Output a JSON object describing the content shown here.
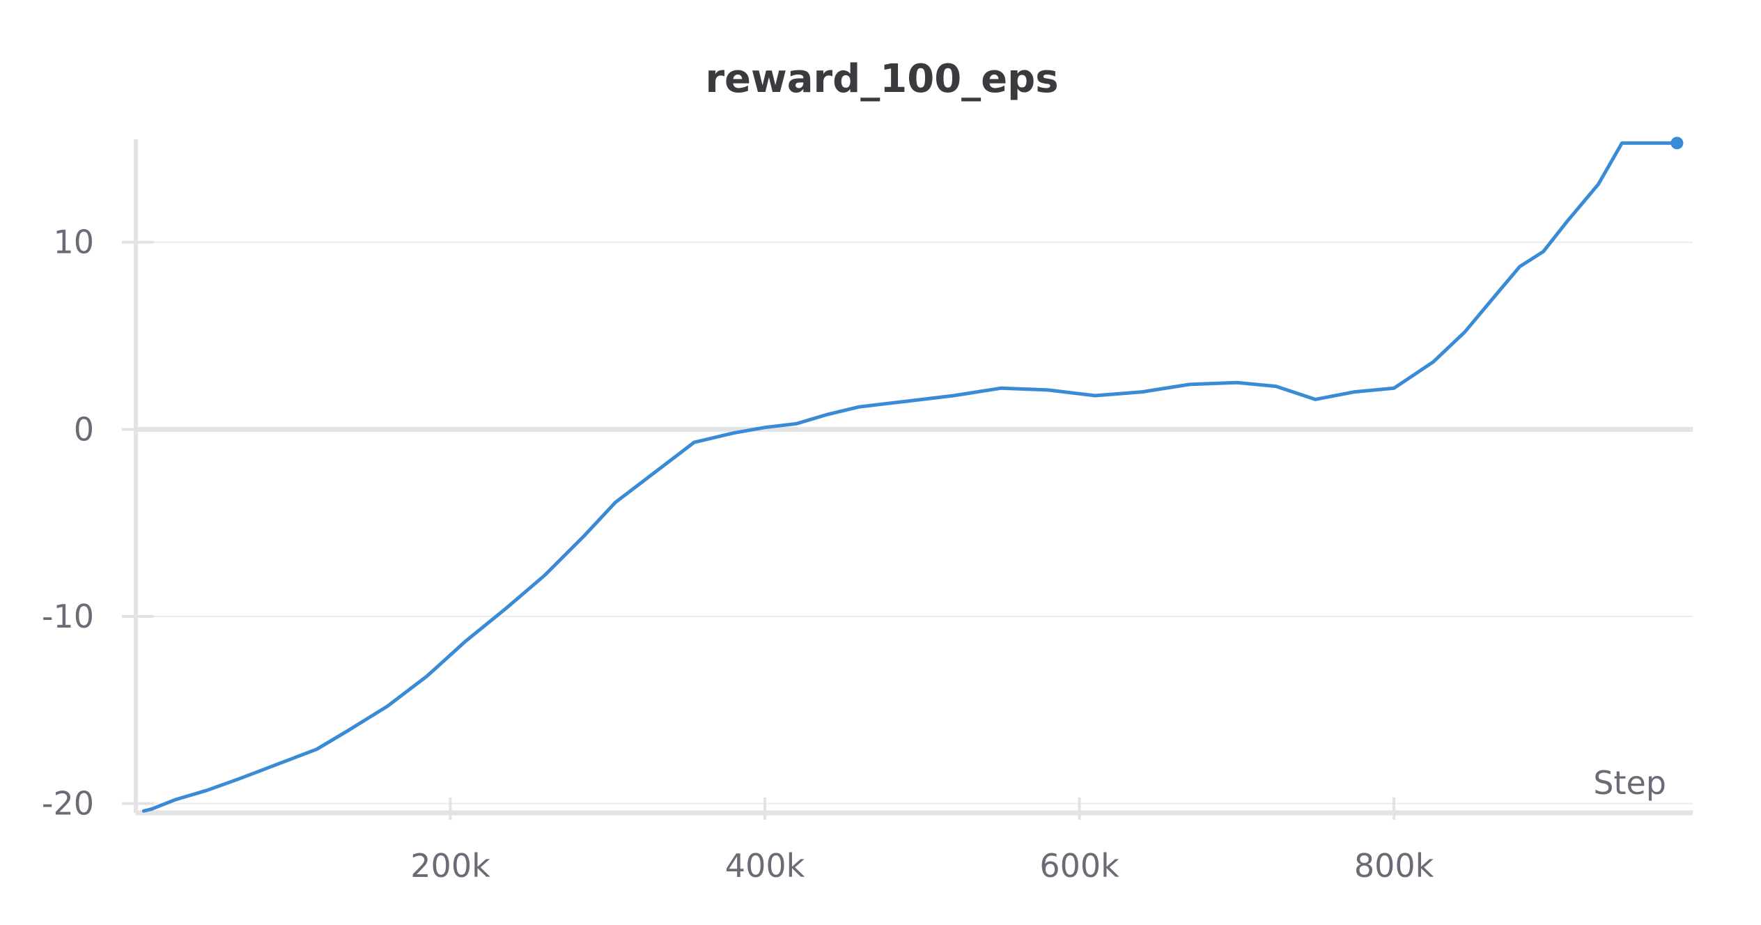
{
  "chart_data": {
    "type": "line",
    "title": "reward_100_eps",
    "xlabel": "Step",
    "ylabel": "",
    "xlim": [
      0,
      990000
    ],
    "ylim": [
      -20.5,
      15.5
    ],
    "x_ticks": [
      {
        "value": 200000,
        "label": "200k"
      },
      {
        "value": 400000,
        "label": "400k"
      },
      {
        "value": 600000,
        "label": "600k"
      },
      {
        "value": 800000,
        "label": "800k"
      }
    ],
    "y_ticks": [
      {
        "value": 10,
        "label": "10"
      },
      {
        "value": 0,
        "label": "0"
      },
      {
        "value": -10,
        "label": "-10"
      },
      {
        "value": -20,
        "label": "-20"
      }
    ],
    "grid": true,
    "legend": "none",
    "series": [
      {
        "color": "#3a8bd6",
        "end_marker": true,
        "x": [
          5000,
          10000,
          25000,
          45000,
          65000,
          90000,
          115000,
          135000,
          160000,
          185000,
          210000,
          235000,
          260000,
          285000,
          305000,
          330000,
          355000,
          380000,
          400000,
          420000,
          440000,
          460000,
          490000,
          520000,
          550000,
          580000,
          610000,
          640000,
          670000,
          700000,
          725000,
          750000,
          775000,
          800000,
          825000,
          845000,
          865000,
          880000,
          895000,
          910000,
          930000,
          945000,
          960000,
          980000
        ],
        "values": [
          -20.4,
          -20.3,
          -19.8,
          -19.3,
          -18.7,
          -17.9,
          -17.1,
          -16.1,
          -14.8,
          -13.2,
          -11.3,
          -9.6,
          -7.8,
          -5.7,
          -3.9,
          -2.3,
          -0.7,
          -0.2,
          0.1,
          0.3,
          0.8,
          1.2,
          1.5,
          1.8,
          2.2,
          2.1,
          1.8,
          2.0,
          2.4,
          2.5,
          2.3,
          1.6,
          2.0,
          2.2,
          3.6,
          5.2,
          7.2,
          8.7,
          9.5,
          11.1,
          13.1,
          15.3,
          15.3,
          15.3
        ]
      }
    ]
  }
}
